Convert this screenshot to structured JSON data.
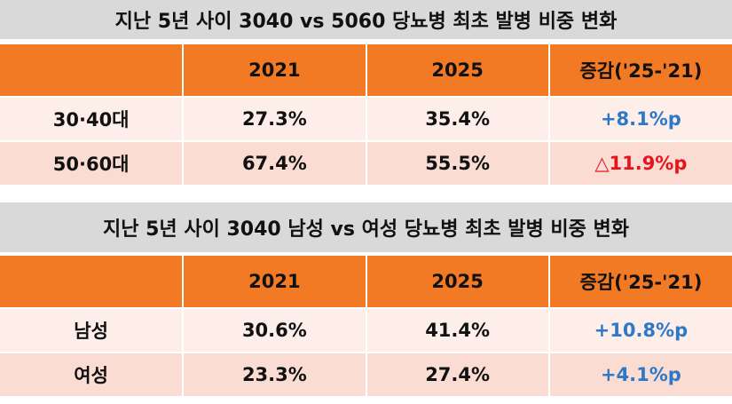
{
  "tables": [
    {
      "title": "지난 5년 사이 3040 vs 5060 당뇨병 최초 발병 비중 변화",
      "headers": [
        "",
        "2021",
        "2025",
        "증감('25-'21)"
      ],
      "rows": [
        [
          "30·40대",
          "27.3%",
          "35.4%",
          "+8.1%p"
        ],
        [
          "50·60대",
          "67.4%",
          "55.5%",
          "△11.9%p"
        ]
      ]
    },
    {
      "title": "지난 5년 사이 3040 남성 vs 여성 당뇨병 최초 발병 비중 변화",
      "headers": [
        "",
        "2021",
        "2025",
        "증감('25-'21)"
      ],
      "rows": [
        [
          "남성",
          "30.6%",
          "41.4%",
          "+10.8%p"
        ],
        [
          "여성",
          "23.3%",
          "27.4%",
          "+4.1%p"
        ]
      ]
    }
  ],
  "colors": {
    "header": "#f27a24",
    "title_bg": "#d9d9d9",
    "increase": "#2e78c8",
    "decrease": "#e8131c"
  }
}
